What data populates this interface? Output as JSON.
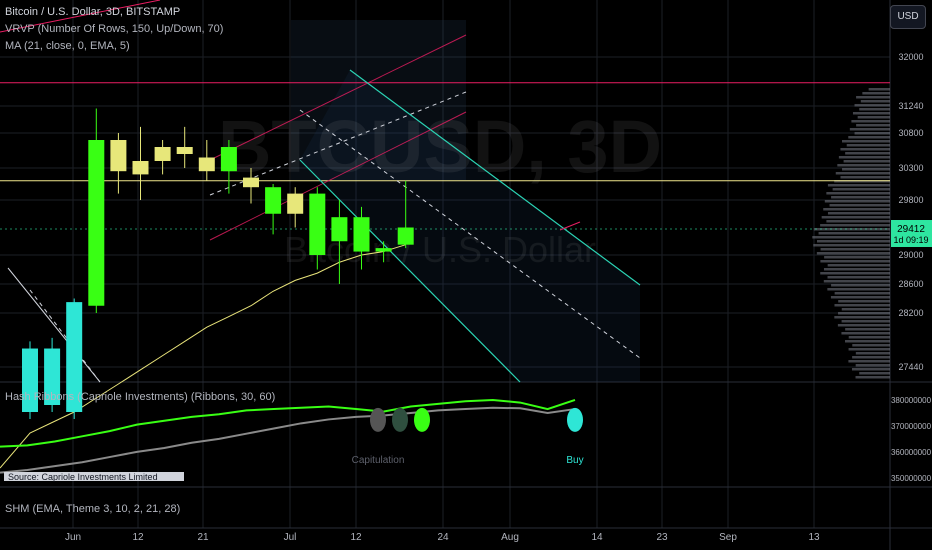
{
  "header": {
    "title": "Bitcoin / U.S. Dollar, 3D, BITSTAMP",
    "vrvp_label": "VRVP (Number Of Rows, 150, Up/Down, 70)",
    "ma_label": "MA (21, close, 0, EMA, 5)",
    "currency_button": "USD"
  },
  "watermark": {
    "symbol": "BTCUSD, 3D",
    "name": "Bitcoin / U.S. Dollar"
  },
  "colors": {
    "bull": "#39ff14",
    "bull_teal": "#2ee6d6",
    "bear": "#e7e77a",
    "ma": "#e8e37a",
    "channel": "#2bd3b4",
    "resistance": "#e91e63",
    "support": "#f0e68c"
  },
  "chart_data": [
    {
      "type": "candlestick",
      "title": "Bitcoin / U.S. Dollar, 3D, BITSTAMP",
      "ylim": [
        27200,
        32600
      ],
      "yticks": [
        32000,
        31240,
        30800,
        30300,
        29800,
        29000,
        28600,
        28200,
        27440
      ],
      "xticks": [
        "Jun",
        "12",
        "21",
        "Jul",
        "12",
        "24",
        "Aug",
        "14",
        "23",
        "Sep",
        "13"
      ],
      "current_price_label": "29412",
      "countdown_label": "1d 09:19",
      "resistance_level": 31600,
      "support_level": 30100,
      "candles": [
        {
          "open": 26800,
          "close": 27700,
          "high": 27800,
          "low": 26700,
          "color": "teal"
        },
        {
          "open": 27700,
          "close": 26900,
          "high": 27850,
          "low": 26800,
          "color": "teal"
        },
        {
          "open": 26800,
          "close": 28350,
          "high": 28400,
          "low": 26700,
          "color": "teal"
        },
        {
          "open": 28300,
          "close": 30700,
          "high": 31200,
          "low": 28200,
          "color": "green"
        },
        {
          "open": 30700,
          "close": 30250,
          "high": 30800,
          "low": 29900,
          "color": "yellow"
        },
        {
          "open": 30200,
          "close": 30400,
          "high": 30900,
          "low": 29800,
          "color": "yellow"
        },
        {
          "open": 30400,
          "close": 30600,
          "high": 30700,
          "low": 30200,
          "color": "yellow"
        },
        {
          "open": 30600,
          "close": 30500,
          "high": 30900,
          "low": 30300,
          "color": "yellow"
        },
        {
          "open": 30450,
          "close": 30250,
          "high": 30700,
          "low": 30100,
          "color": "yellow"
        },
        {
          "open": 30250,
          "close": 30600,
          "high": 30700,
          "low": 29900,
          "color": "green"
        },
        {
          "open": 30150,
          "close": 30000,
          "high": 30300,
          "low": 29750,
          "color": "yellow"
        },
        {
          "open": 30000,
          "close": 29600,
          "high": 30050,
          "low": 29300,
          "color": "green"
        },
        {
          "open": 29600,
          "close": 29900,
          "high": 30000,
          "low": 29400,
          "color": "yellow"
        },
        {
          "open": 29900,
          "close": 29000,
          "high": 30000,
          "low": 28800,
          "color": "green"
        },
        {
          "open": 29200,
          "close": 29550,
          "high": 29800,
          "low": 28600,
          "color": "green"
        },
        {
          "open": 29550,
          "close": 29050,
          "high": 29700,
          "low": 28800,
          "color": "green"
        },
        {
          "open": 29050,
          "close": 29100,
          "high": 29200,
          "low": 28900,
          "color": "green"
        },
        {
          "open": 29150,
          "close": 29400,
          "high": 30100,
          "low": 29100,
          "color": "green"
        }
      ],
      "ma_values": [
        26500,
        26650,
        26800,
        27000,
        27200,
        27400,
        27600,
        27800,
        28000,
        28150,
        28300,
        28500,
        28650,
        28750,
        28900,
        29000,
        29050,
        29150
      ]
    },
    {
      "type": "line",
      "title": "Hash Ribbons (Capriole Investments) (Ribbons, 30, 60)",
      "ylim": [
        348000000,
        385000000
      ],
      "yticks": [
        380000000,
        370000000,
        360000000,
        350000000
      ],
      "ytick_labels": [
        "380000000",
        "370000000",
        "360000000",
        "350000000"
      ],
      "series": [
        {
          "color": "#39ff14",
          "values": [
            362000000,
            362500000,
            364000000,
            366000000,
            368000000,
            370500000,
            372000000,
            373500000,
            374500000,
            376000000,
            376500000,
            377000000,
            377500000,
            376500000,
            375500000,
            377500000,
            378500000,
            379500000,
            380000000,
            379000000,
            376500000,
            380000000
          ]
        },
        {
          "color": "#8a8a8a",
          "values": [
            352000000,
            353000000,
            354500000,
            356000000,
            358000000,
            360000000,
            361500000,
            363500000,
            365000000,
            367000000,
            369000000,
            371000000,
            372500000,
            373500000,
            374000000,
            375000000,
            376000000,
            376500000,
            377000000,
            376800000,
            375000000,
            376500000
          ]
        }
      ],
      "annotations": [
        {
          "label": "Capitulation",
          "value": 365000000
        },
        {
          "label": "Buy",
          "value": 365000000
        }
      ],
      "watermark_text": "Source: Capriole Investments Limited"
    },
    {
      "type": "line",
      "title": "SHM (EMA, Theme 3, 10, 2, 21, 28)"
    }
  ]
}
